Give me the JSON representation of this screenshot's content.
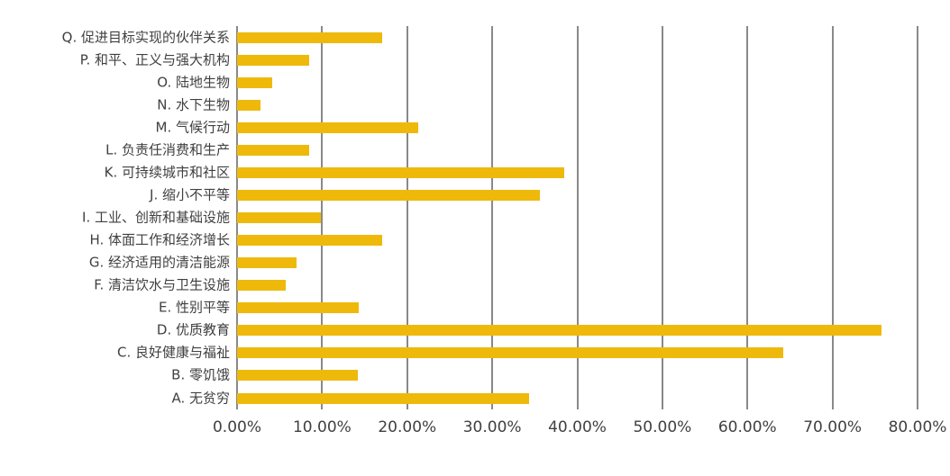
{
  "chart_data": {
    "type": "bar",
    "orientation": "horizontal",
    "title": "",
    "xlabel": "",
    "ylabel": "",
    "categories": [
      "Q. 促进目标实现的伙伴关系",
      "P. 和平、正义与强大机构",
      "O. 陆地生物",
      "N. 水下生物",
      "M. 气候行动",
      "L. 负责任消费和生产",
      "K. 可持续城市和社区",
      "J. 缩小不平等",
      "I. 工业、创新和基础设施",
      "H. 体面工作和经济增长",
      "G. 经济适用的清洁能源",
      "F. 清洁饮水与卫生设施",
      "E. 性别平等",
      "D. 优质教育",
      "C. 良好健康与福祉",
      "B. 零饥饿",
      "A. 无贫穷"
    ],
    "values": [
      17.1,
      8.5,
      4.1,
      2.8,
      21.3,
      8.5,
      38.5,
      35.6,
      9.9,
      17.1,
      7.0,
      5.7,
      14.3,
      75.8,
      64.2,
      14.2,
      34.3
    ],
    "value_unit": "%",
    "xlim": [
      0,
      80
    ],
    "x_tick_values": [
      0,
      10,
      20,
      30,
      40,
      50,
      60,
      70,
      80
    ],
    "x_tick_labels": [
      "0.00%",
      "10.00%",
      "20.00%",
      "30.00%",
      "40.00%",
      "50.00%",
      "60.00%",
      "70.00%",
      "80.00%"
    ],
    "grid": "vertical-gridlines-on",
    "legend": "none",
    "colors": {
      "bar": "#EEB90B",
      "gridline": "#898989",
      "text": "#404040",
      "background": "#FFFFFF"
    }
  }
}
